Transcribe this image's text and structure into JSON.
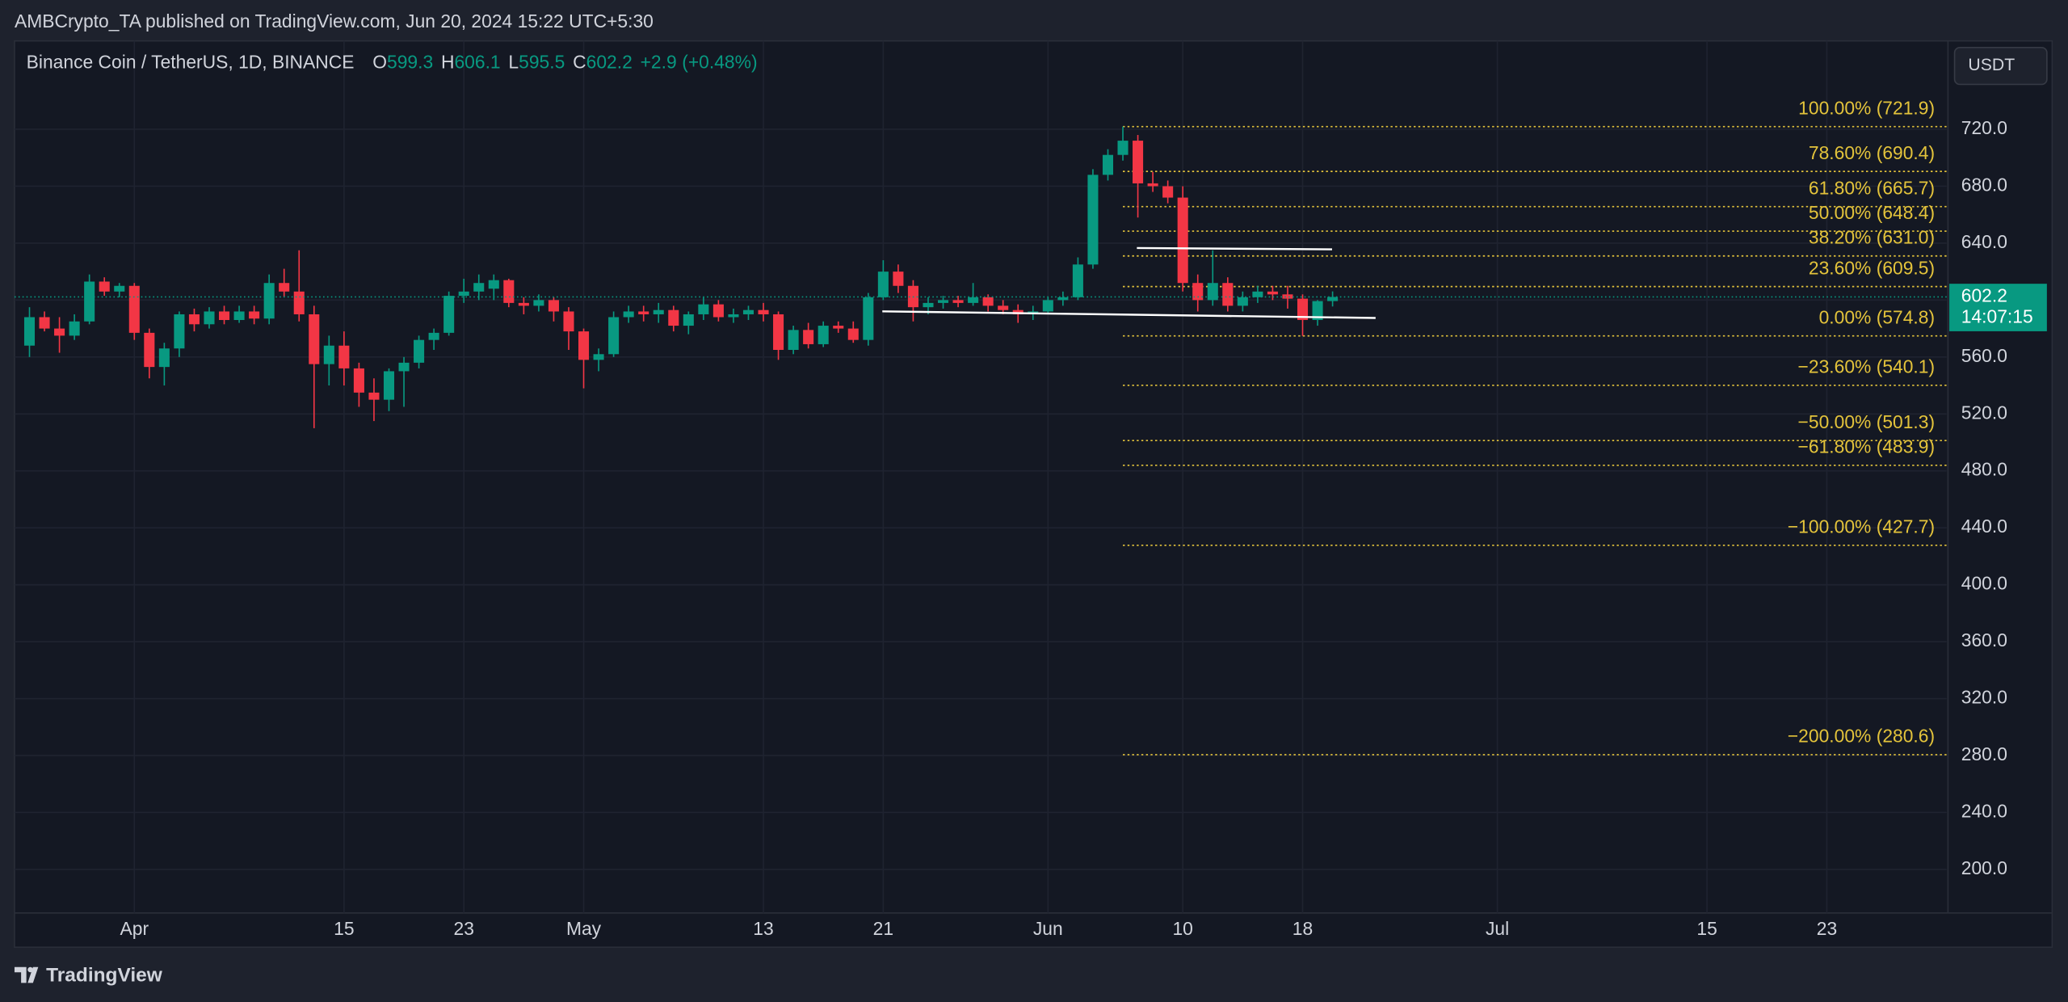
{
  "header": {
    "published": "AMBCrypto_TA published on TradingView.com, Jun 20, 2024 15:22 UTC+5:30",
    "logo": "TradingView",
    "currency_button": "USDT"
  },
  "chart_data": {
    "type": "candlestick",
    "title": "Binance Coin / TetherUS, 1D, BINANCE",
    "ohlc_legend": [
      {
        "label": "O",
        "value": 599.3
      },
      {
        "label": "H",
        "value": 606.1
      },
      {
        "label": "L",
        "value": 595.5
      },
      {
        "label": "C",
        "value": 602.2
      }
    ],
    "change": "+2.9",
    "change_percent": "(+0.48%)",
    "last_price": 602.2,
    "countdown": "14:07:15",
    "up_color": "#089981",
    "down_color": "#f23645",
    "fib_color": "#e3c33b",
    "grid": true,
    "x": [
      "2024-03-25",
      "2024-03-26",
      "2024-03-27",
      "2024-03-28",
      "2024-03-29",
      "2024-03-30",
      "2024-03-31",
      "2024-04-01",
      "2024-04-02",
      "2024-04-03",
      "2024-04-04",
      "2024-04-05",
      "2024-04-06",
      "2024-04-07",
      "2024-04-08",
      "2024-04-09",
      "2024-04-10",
      "2024-04-11",
      "2024-04-12",
      "2024-04-13",
      "2024-04-14",
      "2024-04-15",
      "2024-04-16",
      "2024-04-17",
      "2024-04-18",
      "2024-04-19",
      "2024-04-20",
      "2024-04-21",
      "2024-04-22",
      "2024-04-23",
      "2024-04-24",
      "2024-04-25",
      "2024-04-26",
      "2024-04-27",
      "2024-04-28",
      "2024-04-29",
      "2024-04-30",
      "2024-05-01",
      "2024-05-02",
      "2024-05-03",
      "2024-05-04",
      "2024-05-05",
      "2024-05-06",
      "2024-05-07",
      "2024-05-08",
      "2024-05-09",
      "2024-05-10",
      "2024-05-11",
      "2024-05-12",
      "2024-05-13",
      "2024-05-14",
      "2024-05-15",
      "2024-05-16",
      "2024-05-17",
      "2024-05-18",
      "2024-05-19",
      "2024-05-20",
      "2024-05-21",
      "2024-05-22",
      "2024-05-23",
      "2024-05-24",
      "2024-05-25",
      "2024-05-26",
      "2024-05-27",
      "2024-05-28",
      "2024-05-29",
      "2024-05-30",
      "2024-05-31",
      "2024-06-01",
      "2024-06-02",
      "2024-06-03",
      "2024-06-04",
      "2024-06-05",
      "2024-06-06",
      "2024-06-07",
      "2024-06-08",
      "2024-06-09",
      "2024-06-10",
      "2024-06-11",
      "2024-06-12",
      "2024-06-13",
      "2024-06-14",
      "2024-06-15",
      "2024-06-16",
      "2024-06-17",
      "2024-06-18",
      "2024-06-19",
      "2024-06-20"
    ],
    "open": [
      568,
      588,
      580,
      575,
      585,
      613,
      606,
      610,
      577,
      553,
      566,
      590,
      583,
      592,
      586,
      592,
      587,
      612,
      606,
      590,
      555,
      568,
      552,
      535,
      530,
      550,
      556,
      572,
      577,
      603,
      606,
      608,
      614,
      598,
      596,
      600,
      592,
      578,
      558,
      562,
      588,
      592,
      590,
      593,
      582,
      590,
      597,
      588,
      590,
      593,
      590,
      565,
      579,
      569,
      582,
      580,
      572,
      602,
      620,
      610,
      595,
      598,
      600,
      598,
      602,
      596,
      593,
      590,
      592,
      600,
      602,
      625,
      688,
      702,
      712,
      682,
      680,
      672,
      612,
      600,
      612,
      596,
      602,
      606,
      604,
      601,
      586,
      599.3
    ],
    "high": [
      595,
      592,
      588,
      590,
      618,
      616,
      612,
      612,
      580,
      570,
      592,
      594,
      595,
      596,
      596,
      596,
      618,
      622,
      635,
      596,
      575,
      578,
      556,
      545,
      552,
      560,
      575,
      580,
      606,
      615,
      618,
      618,
      615,
      602,
      604,
      602,
      595,
      580,
      566,
      592,
      596,
      596,
      598,
      596,
      592,
      602,
      600,
      594,
      596,
      598,
      592,
      582,
      584,
      585,
      585,
      585,
      605,
      628,
      625,
      614,
      602,
      603,
      603,
      612,
      604,
      600,
      597,
      596,
      602,
      606,
      630,
      692,
      706,
      721.9,
      716,
      690,
      684,
      680,
      618,
      635,
      616,
      606,
      610,
      610,
      610,
      604,
      600,
      606.1
    ],
    "low": [
      560,
      578,
      563,
      572,
      583,
      603,
      602,
      572,
      545,
      540,
      560,
      578,
      580,
      583,
      584,
      583,
      583,
      602,
      585,
      510,
      540,
      540,
      525,
      515,
      522,
      525,
      552,
      565,
      575,
      598,
      600,
      600,
      595,
      590,
      592,
      585,
      565,
      538,
      550,
      560,
      584,
      585,
      584,
      578,
      576,
      586,
      585,
      584,
      586,
      585,
      558,
      562,
      566,
      567,
      577,
      570,
      568,
      600,
      605,
      585,
      590,
      594,
      595,
      596,
      592,
      590,
      584,
      586,
      590,
      596,
      600,
      622,
      684,
      698,
      658,
      676,
      668,
      606,
      592,
      596,
      592,
      592,
      598,
      600,
      594,
      574.8,
      582,
      595.5
    ],
    "close": [
      588,
      580,
      575,
      585,
      613,
      606,
      610,
      577,
      553,
      566,
      590,
      583,
      592,
      586,
      592,
      587,
      612,
      606,
      590,
      555,
      568,
      552,
      535,
      530,
      550,
      556,
      572,
      577,
      603,
      606,
      612,
      614,
      598,
      596,
      600,
      592,
      578,
      558,
      562,
      588,
      592,
      590,
      593,
      582,
      590,
      597,
      588,
      590,
      593,
      590,
      565,
      579,
      569,
      582,
      580,
      572,
      602,
      620,
      610,
      595,
      598,
      600,
      598,
      602,
      596,
      593,
      590,
      592,
      600,
      602,
      625,
      688,
      702,
      712,
      682,
      680,
      672,
      612,
      600,
      612,
      596,
      602,
      606,
      604,
      601,
      586,
      599.3,
      602.2
    ],
    "xlim": [
      "2024-03-24",
      "2024-07-31"
    ],
    "xticks": [
      {
        "value": "2024-04-01",
        "label": "Apr"
      },
      {
        "value": "2024-04-15",
        "label": "15"
      },
      {
        "value": "2024-04-23",
        "label": "23"
      },
      {
        "value": "2024-05-01",
        "label": "May"
      },
      {
        "value": "2024-05-13",
        "label": "13"
      },
      {
        "value": "2024-05-21",
        "label": "21"
      },
      {
        "value": "2024-06-01",
        "label": "Jun"
      },
      {
        "value": "2024-06-10",
        "label": "10"
      },
      {
        "value": "2024-06-18",
        "label": "18"
      },
      {
        "value": "2024-07-01",
        "label": "Jul"
      },
      {
        "value": "2024-07-15",
        "label": "15"
      },
      {
        "value": "2024-07-23",
        "label": "23"
      }
    ],
    "ylim": [
      169.4,
      782.1
    ],
    "yticks": [
      {
        "value": 720,
        "label": "720.0"
      },
      {
        "value": 680,
        "label": "680.0"
      },
      {
        "value": 640,
        "label": "640.0"
      },
      {
        "value": 600,
        "label": "600.0"
      },
      {
        "value": 560,
        "label": "560.0"
      },
      {
        "value": 520,
        "label": "520.0"
      },
      {
        "value": 480,
        "label": "480.0"
      },
      {
        "value": 440,
        "label": "440.0"
      },
      {
        "value": 400,
        "label": "400.0"
      },
      {
        "value": 360,
        "label": "360.0"
      },
      {
        "value": 320,
        "label": "320.0"
      },
      {
        "value": 280,
        "label": "280.0"
      },
      {
        "value": 240,
        "label": "240.0"
      },
      {
        "value": 200,
        "label": "200.0"
      }
    ],
    "fib_levels": [
      {
        "value": 721.9,
        "label": "100.00% (721.9)"
      },
      {
        "value": 690.4,
        "label": "78.60% (690.4)"
      },
      {
        "value": 665.7,
        "label": "61.80% (665.7)"
      },
      {
        "value": 648.4,
        "label": "50.00% (648.4)"
      },
      {
        "value": 631.0,
        "label": "38.20% (631.0)"
      },
      {
        "value": 609.5,
        "label": "23.60% (609.5)"
      },
      {
        "value": 574.8,
        "label": "0.00% (574.8)"
      },
      {
        "value": 540.1,
        "label": "−23.60% (540.1)"
      },
      {
        "value": 501.3,
        "label": "−50.00% (501.3)"
      },
      {
        "value": 483.9,
        "label": "−61.80% (483.9)"
      },
      {
        "value": 427.7,
        "label": "−100.00% (427.7)"
      },
      {
        "value": 280.6,
        "label": "−200.00% (280.6)"
      }
    ]
  }
}
